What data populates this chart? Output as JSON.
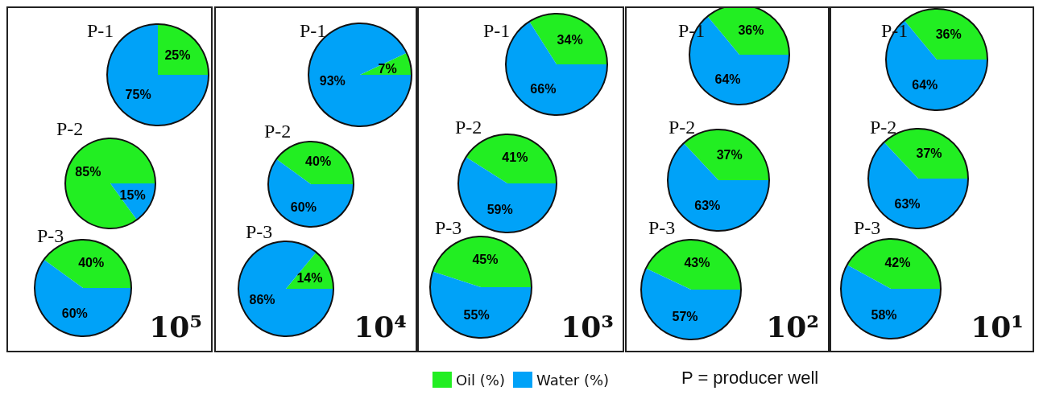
{
  "chart_data": [
    {
      "type": "pie",
      "title": "10⁵",
      "colors": [
        "#22ee22",
        "#00a2f8"
      ],
      "series": [
        {
          "name": "P-1",
          "values": [
            25,
            75
          ],
          "value_labels": [
            "25%",
            "75%"
          ]
        },
        {
          "name": "P-2",
          "values": [
            85,
            15
          ],
          "value_labels": [
            "85%",
            "15%"
          ]
        },
        {
          "name": "P-3",
          "values": [
            40,
            60
          ],
          "value_labels": [
            "40%",
            "60%"
          ]
        }
      ]
    },
    {
      "type": "pie",
      "title": "10⁴",
      "colors": [
        "#22ee22",
        "#00a2f8"
      ],
      "series": [
        {
          "name": "P-1",
          "values": [
            7,
            93
          ],
          "value_labels": [
            "7%",
            "93%"
          ]
        },
        {
          "name": "P-2",
          "values": [
            40,
            60
          ],
          "value_labels": [
            "40%",
            "60%"
          ]
        },
        {
          "name": "P-3",
          "values": [
            14,
            86
          ],
          "value_labels": [
            "14%",
            "86%"
          ]
        }
      ]
    },
    {
      "type": "pie",
      "title": "10³",
      "categories": [
        "Oil (%)",
        "Water (%)"
      ],
      "colors": [
        "#22ee22",
        "#00a2f8"
      ],
      "legend": "bottom",
      "series": [
        {
          "name": "P-1",
          "values": [
            34,
            66
          ],
          "value_labels": [
            "34%",
            "66%"
          ]
        },
        {
          "name": "P-2",
          "values": [
            41,
            59
          ],
          "value_labels": [
            "41%",
            "59%"
          ]
        },
        {
          "name": "P-3",
          "values": [
            45,
            55
          ],
          "value_labels": [
            "45%",
            "55%"
          ]
        }
      ]
    },
    {
      "type": "pie",
      "title": "10²",
      "colors": [
        "#22ee22",
        "#00a2f8"
      ],
      "annotations": [
        "P = producer well"
      ],
      "series": [
        {
          "name": "P-1",
          "values": [
            36,
            64
          ],
          "value_labels": [
            "36%",
            "64%"
          ]
        },
        {
          "name": "P-2",
          "values": [
            37,
            63
          ],
          "value_labels": [
            "37%",
            "63%"
          ]
        },
        {
          "name": "P-3",
          "values": [
            43,
            57
          ],
          "value_labels": [
            "43%",
            "57%"
          ]
        }
      ]
    },
    {
      "type": "pie",
      "title": "10¹",
      "colors": [
        "#22ee22",
        "#00a2f8"
      ],
      "series": [
        {
          "name": "P-1",
          "values": [
            36,
            64
          ],
          "value_labels": [
            "36%",
            "64%"
          ]
        },
        {
          "name": "P-2",
          "values": [
            37,
            63
          ],
          "value_labels": [
            "37%",
            "63%"
          ]
        },
        {
          "name": "P-3",
          "values": [
            42,
            58
          ],
          "value_labels": [
            "42%",
            "58%"
          ]
        }
      ]
    }
  ]
}
